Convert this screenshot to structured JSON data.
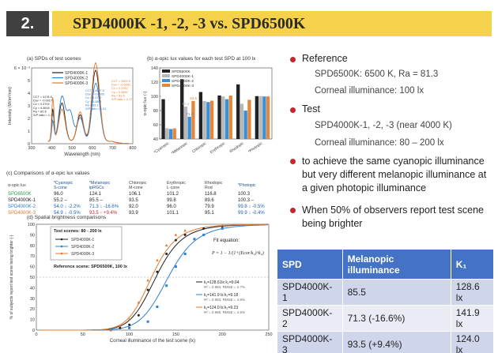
{
  "header": {
    "number": "2.",
    "title": "SPD4000K -1, -2, -3 vs. SPD6500K"
  },
  "panel_a": {
    "label": "(a) SPDs of test scenes",
    "ylabel": "Intensity (W/m²/nm)",
    "xlabel": "Wavelength (nm)",
    "yticks": [
      "6 × 10⁻³",
      "5",
      "4",
      "3",
      "2",
      "1",
      "0"
    ],
    "xticks": [
      "300",
      "400",
      "500",
      "600",
      "700",
      "800"
    ],
    "legend": [
      "SPD4000K-1",
      "SPD4000K-2",
      "SPD4000K-3"
    ],
    "colors": [
      "#222222",
      "#2f7fd0",
      "#e07a30"
    ],
    "notes": [
      "CCT = 4178 K\nDuv = -0.0017\nCx = 0.3702\nCy = 0.3616\nRa = 82.8\nS/P ratio = 1.77",
      "CCT = 4007 K\nDuv = -0.0005\nCx = 0.3797\nCy = 0.3801\nRa = 85.1\nS/P ratio = 1.51",
      "CCT = 3903 K\nDuv = -0.0052\nCx = 0.3752\nCy = 0.3600\nRa = 81.5\nS/P ratio = 2.17"
    ]
  },
  "panel_b": {
    "label": "(b) α-opic lux values for each test SPD at 100 lx",
    "ylabel": "α-opic lux (-)",
    "yticks": [
      "140",
      "120",
      "100",
      "80",
      "60",
      "40"
    ],
    "categories": [
      "*Cyanopic",
      "*Melanopic",
      "Chloropic",
      "Erythropic",
      "Rhodopic",
      "*Photopic"
    ],
    "legend": [
      "SPD6500K",
      "SPD4000K-1",
      "SPD4000K-2",
      "SPD4000K-3"
    ],
    "colors": [
      "#222222",
      "#b8b8b8",
      "#3a8fd9",
      "#e4873a"
    ],
    "annotations": [
      "85.5",
      "71.3",
      "93.5"
    ]
  },
  "chart_data": {
    "type": "bar",
    "categories": [
      "*Cyanopic",
      "*Melanopic",
      "Chloropic",
      "Erythropic",
      "Rhodopic",
      "*Photopic"
    ],
    "series": [
      {
        "name": "SPD6500K",
        "values": [
          96.0,
          124.1,
          106.1,
          101.2,
          116.8,
          100.3
        ]
      },
      {
        "name": "SPD4000K-1",
        "values": [
          55.2,
          85.5,
          93.5,
          99.8,
          89.6,
          100.3
        ]
      },
      {
        "name": "SPD4000K-2",
        "values": [
          54.0,
          71.3,
          92.0,
          96.0,
          79.9,
          99.8
        ]
      },
      {
        "name": "SPD4000K-3",
        "values": [
          54.9,
          93.5,
          93.9,
          101.1,
          95.1,
          99.9
        ]
      }
    ],
    "ylim": [
      40,
      140
    ]
  },
  "panel_c": {
    "label": "(c) Comparisons of α-opic lux values",
    "header": [
      "α-opic lux",
      "*Cyanopic\nS-cone",
      "*Melanopic\nipRGCs",
      "Chloropic\nM-cone",
      "Erythropic\nL-cone",
      "Rhodopic\nRod",
      "*Photopic"
    ],
    "rows": [
      {
        "name": "SPD6500K",
        "color": "#2f9d4a",
        "cells": [
          "96.0",
          "124.1",
          "106.1",
          "101.2",
          "116.8",
          "100.3"
        ]
      },
      {
        "name": "SPD4000K-1",
        "color": "#222222",
        "cells": [
          "55.2  –",
          "85.5  –",
          "93.5",
          "99.8",
          "89.6",
          "100.3  –"
        ]
      },
      {
        "name": "SPD4000K-2",
        "color": "#2f7fd0",
        "cells": [
          "54.0 ↓ -2.2%",
          "71.3 ↓ -16.6%",
          "92.0",
          "96.0",
          "79.9",
          "99.8 ↓ -0.5%"
        ]
      },
      {
        "name": "SPD4000K-3",
        "color": "#e07a30",
        "cells": [
          "54.9 ↓ -0.5%",
          "93.5 ↑ +9.4%",
          "93.9",
          "101.1",
          "95.1",
          "99.9 ↓ -0.4%"
        ]
      }
    ]
  },
  "panel_d": {
    "label": "(d) Spatial brightness comparisons",
    "ylabel": "% of subjects report test scene being brighter (-)",
    "xlabel": "Corneal illuminance of the test scene (lx)",
    "yticks": [
      "100",
      "90",
      "80",
      "70",
      "60",
      "50",
      "40",
      "30",
      "20",
      "10",
      "0"
    ],
    "xticks": [
      "0",
      "50",
      "100",
      "150",
      "200",
      "250"
    ],
    "legend_title": "Test scenes: 80 - 200 lx",
    "legend": [
      "SPD4000K-1",
      "SPD4000K-2",
      "SPD4000K-3"
    ],
    "colors": [
      "#222222",
      "#2f7fd0",
      "#e07a30"
    ],
    "reference": "Reference scene: SPD6500K, 100 lx",
    "fit_title": "Fit equation:",
    "fits": [
      {
        "k": "k₁=128.61lx   k₂=9.04",
        "r": "R² = 0.994, RMSE = 2.7%"
      },
      {
        "k": "k₁=141.9 lx   k₂=9.18",
        "r": "R² = 0.993, RMSE = 4.8%"
      },
      {
        "k": "k₁=124.0 lx   k₂=9.23",
        "r": "R² = 0.986, RMSE = 4.5%"
      }
    ]
  },
  "bullets": [
    {
      "text": "Reference",
      "level": 0
    },
    {
      "text": "SPD6500K: 6500 K, Ra = 81.3",
      "level": 1
    },
    {
      "text": "Corneal illuminance: 100 lx",
      "level": 1
    },
    {
      "text": "Test",
      "level": 0
    },
    {
      "text": "SPD4000K-1, -2, -3 (near 4000 K)",
      "level": 1
    },
    {
      "text": "Corneal illuminance: 80 – 200 lx",
      "level": 1
    },
    {
      "text": "to achieve the same cyanopic illuminance but very different melanopic illuminance at a given photopic illuminance",
      "level": 0
    },
    {
      "text": "When 50% of observers report test scene being brighter",
      "level": 0
    }
  ],
  "result_table": {
    "headers": [
      "SPD",
      "Melanopic illuminance",
      "K₁"
    ],
    "rows": [
      [
        "SPD4000K-1",
        "85.5",
        "128.6 lx"
      ],
      [
        "SPD4000K-2",
        "71.3 (-16.6%)",
        "141.9 lx"
      ],
      [
        "SPD4000K-3",
        "93.5 (+9.4%)",
        "124.0 lx"
      ]
    ]
  }
}
